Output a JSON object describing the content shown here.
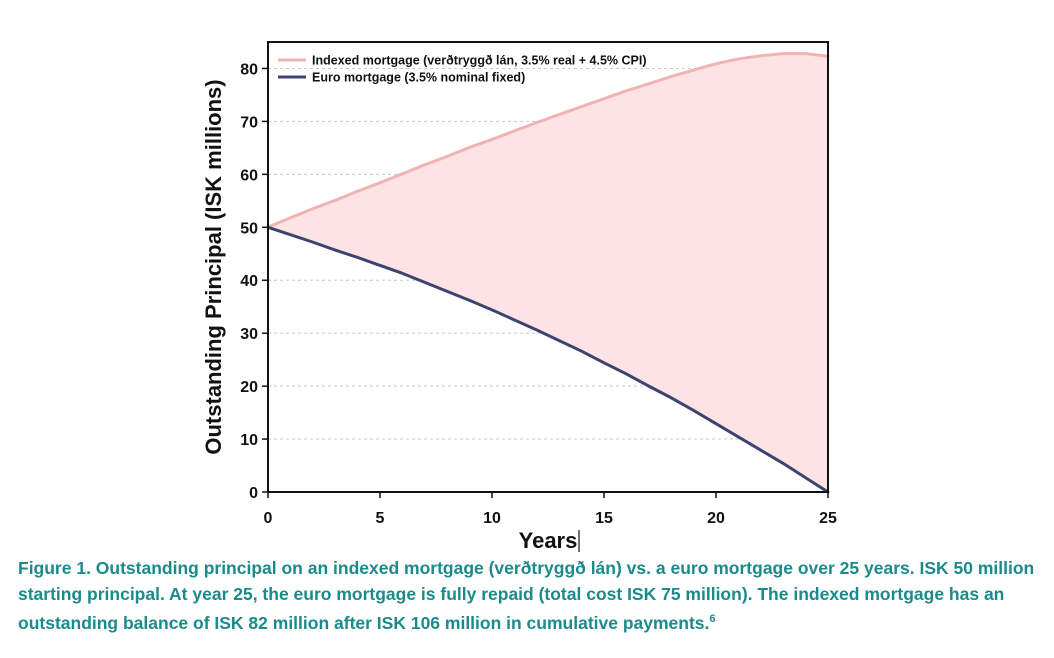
{
  "chart_data": {
    "type": "area",
    "xlabel": "Years",
    "ylabel": "Outstanding Principal (ISK millions)",
    "xlim": [
      0,
      25
    ],
    "ylim": [
      0,
      85
    ],
    "xticks": [
      0,
      5,
      10,
      15,
      20,
      25
    ],
    "yticks": [
      0,
      10,
      20,
      30,
      40,
      50,
      60,
      70,
      80
    ],
    "grid": "horizontal dashed",
    "legend_position": "top-left",
    "shaded_region": "between series",
    "x": [
      0,
      1,
      2,
      3,
      4,
      5,
      6,
      7,
      8,
      9,
      10,
      11,
      12,
      13,
      14,
      15,
      16,
      17,
      18,
      19,
      20,
      21,
      22,
      23,
      24,
      25
    ],
    "series": [
      {
        "name": "Indexed mortgage (verðtryggð lán, 3.5% real + 4.5% CPI)",
        "color": "#efb3b3",
        "values": [
          50.0,
          51.8,
          53.5,
          55.1,
          56.8,
          58.4,
          60.1,
          61.8,
          63.4,
          65.1,
          66.6,
          68.2,
          69.8,
          71.3,
          72.8,
          74.3,
          75.8,
          77.1,
          78.5,
          79.7,
          80.9,
          81.8,
          82.4,
          82.8,
          82.8,
          82.3
        ]
      },
      {
        "name": "Euro mortgage (3.5% nominal fixed)",
        "color": "#3d4370",
        "values": [
          50.0,
          48.6,
          47.2,
          45.7,
          44.3,
          42.8,
          41.3,
          39.6,
          37.9,
          36.2,
          34.4,
          32.5,
          30.6,
          28.6,
          26.6,
          24.4,
          22.3,
          20.0,
          17.8,
          15.4,
          12.9,
          10.4,
          7.9,
          5.4,
          2.7,
          0.0
        ]
      }
    ],
    "fill_color": "#fde3e3"
  },
  "caption": {
    "text": "Figure 1. Outstanding principal on an indexed mortgage (verðtryggð lán) vs. a euro mortgage over 25 years. ISK 50 million starting principal. At year 25, the euro mortgage is fully repaid (total cost ISK 75 million). The indexed mortgage has an outstanding balance of ISK 82 million after ISK 106 million in cumulative payments.",
    "footnote": "6"
  }
}
